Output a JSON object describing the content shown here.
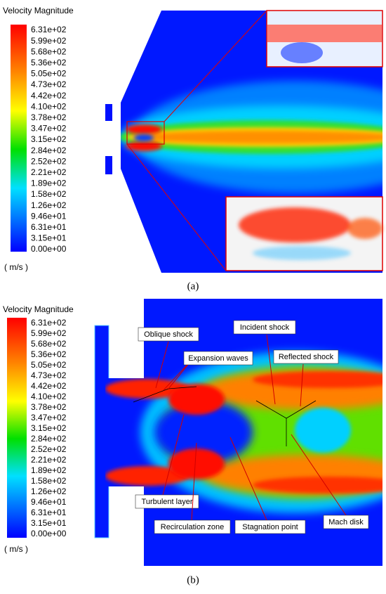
{
  "panels": [
    {
      "label": "(a)",
      "legend": {
        "title": "Velocity Magnitude",
        "unit": "( m/s )",
        "ticks": [
          "6.31e+02",
          "5.99e+02",
          "5.68e+02",
          "5.36e+02",
          "5.05e+02",
          "4.73e+02",
          "4.42e+02",
          "4.10e+02",
          "3.78e+02",
          "3.47e+02",
          "3.15e+02",
          "2.84e+02",
          "2.52e+02",
          "2.21e+02",
          "1.89e+02",
          "1.58e+02",
          "1.26e+02",
          "9.46e+01",
          "6.31e+01",
          "3.15e+01",
          "0.00e+00"
        ]
      }
    },
    {
      "label": "(b)",
      "legend": {
        "title": "Velocity Magnitude",
        "unit": "( m/s )",
        "ticks": [
          "6.31e+02",
          "5.99e+02",
          "5.68e+02",
          "5.36e+02",
          "5.05e+02",
          "4.73e+02",
          "4.42e+02",
          "4.10e+02",
          "3.78e+02",
          "3.47e+02",
          "3.15e+02",
          "2.84e+02",
          "2.52e+02",
          "2.21e+02",
          "1.89e+02",
          "1.58e+02",
          "1.26e+02",
          "9.46e+01",
          "6.31e+01",
          "3.15e+01",
          "0.00e+00"
        ]
      },
      "annotations": [
        "Oblique shock",
        "Expansion waves",
        "Incident shock",
        "Reflected shock",
        "Turbulent layer",
        "Recirculation zone",
        "Stagnation point",
        "Mach disk"
      ]
    }
  ]
}
